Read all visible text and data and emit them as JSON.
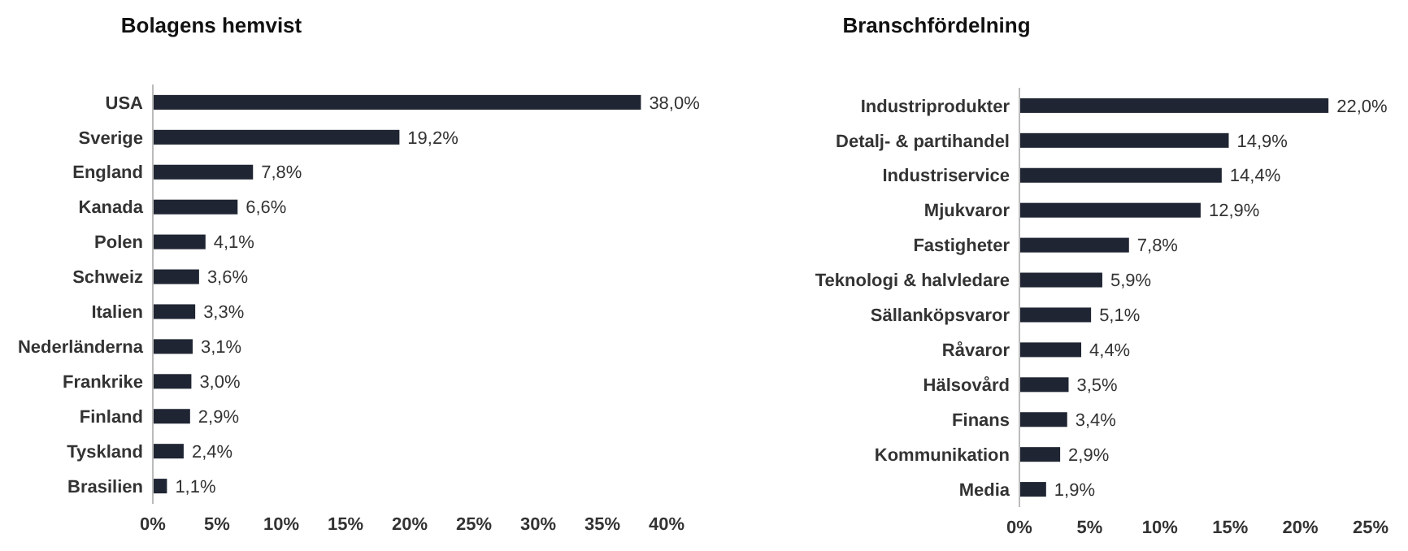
{
  "chart_data": [
    {
      "type": "bar",
      "orientation": "horizontal",
      "title": "Bolagens hemvist",
      "categories": [
        "USA",
        "Sverige",
        "England",
        "Kanada",
        "Polen",
        "Schweiz",
        "Italien",
        "Nederländerna",
        "Frankrike",
        "Finland",
        "Tyskland",
        "Brasilien"
      ],
      "values": [
        38.0,
        19.2,
        7.8,
        6.6,
        4.1,
        3.6,
        3.3,
        3.1,
        3.0,
        2.9,
        2.4,
        1.1
      ],
      "value_labels": [
        "38,0%",
        "19,2%",
        "7,8%",
        "6,6%",
        "4,1%",
        "3,6%",
        "3,3%",
        "3,1%",
        "3,0%",
        "2,9%",
        "2,4%",
        "1,1%"
      ],
      "color": "#1f2532",
      "xlim": [
        0,
        40
      ],
      "xticks": [
        {
          "value": 0,
          "label": "0%"
        },
        {
          "value": 5,
          "label": "5%"
        },
        {
          "value": 10,
          "label": "10%"
        },
        {
          "value": 15,
          "label": "15%"
        },
        {
          "value": 20,
          "label": "20%"
        },
        {
          "value": 25,
          "label": "25%"
        },
        {
          "value": 30,
          "label": "30%"
        },
        {
          "value": 35,
          "label": "35%"
        },
        {
          "value": 40,
          "label": "40%"
        }
      ],
      "grid": false
    },
    {
      "type": "bar",
      "orientation": "horizontal",
      "title": "Branschfördelning",
      "categories": [
        "Industriprodukter",
        "Detalj- & partihandel",
        "Industriservice",
        "Mjukvaror",
        "Fastigheter",
        "Teknologi & halvledare",
        "Sällanköpsvaror",
        "Råvaror",
        "Hälsovård",
        "Finans",
        "Kommunikation",
        "Media"
      ],
      "values": [
        22.0,
        14.9,
        14.4,
        12.9,
        7.8,
        5.9,
        5.1,
        4.4,
        3.5,
        3.4,
        2.9,
        1.9
      ],
      "value_labels": [
        "22,0%",
        "14,9%",
        "14,4%",
        "12,9%",
        "7,8%",
        "5,9%",
        "5,1%",
        "4,4%",
        "3,5%",
        "3,4%",
        "2,9%",
        "1,9%"
      ],
      "color": "#1f2532",
      "xlim": [
        0,
        25
      ],
      "xticks": [
        {
          "value": 0,
          "label": "0%"
        },
        {
          "value": 5,
          "label": "5%"
        },
        {
          "value": 10,
          "label": "10%"
        },
        {
          "value": 15,
          "label": "15%"
        },
        {
          "value": 20,
          "label": "20%"
        },
        {
          "value": 25,
          "label": "25%"
        }
      ],
      "grid": false
    }
  ]
}
